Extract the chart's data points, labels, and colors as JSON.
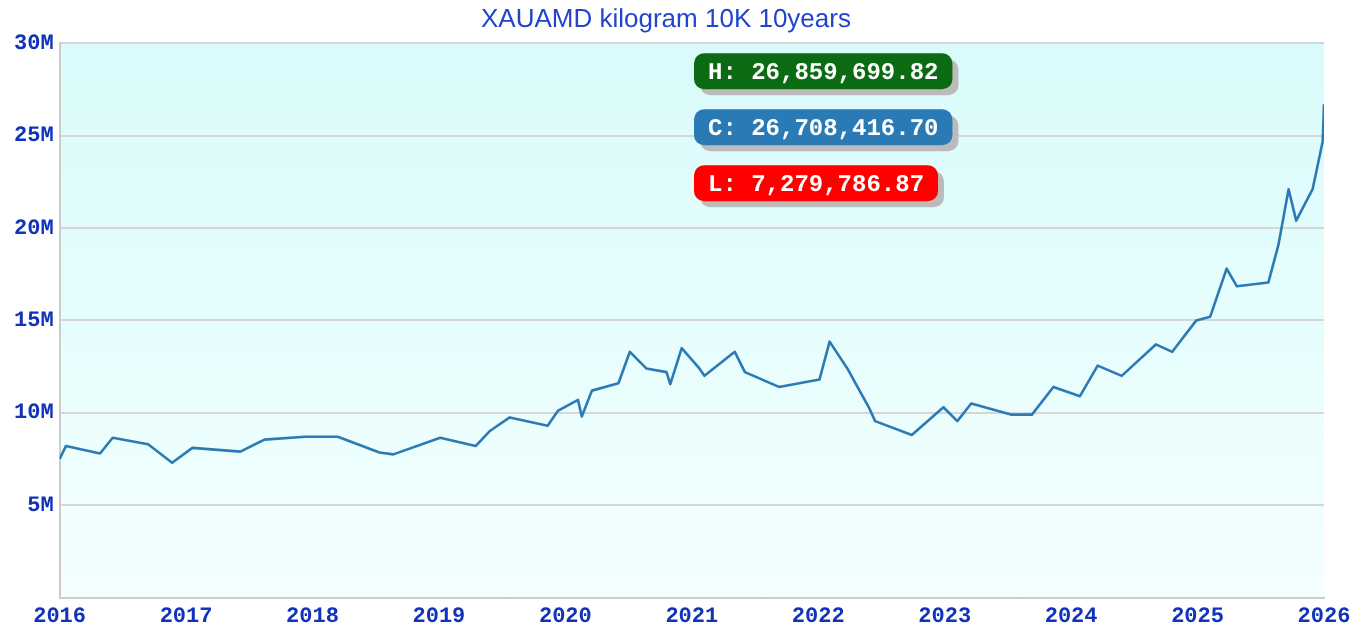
{
  "chart_data": {
    "type": "line",
    "title": "XAUAMD kilogram 10K 10years",
    "x": [
      2016.0,
      2016.05,
      2016.32,
      2016.42,
      2016.7,
      2016.89,
      2017.05,
      2017.43,
      2017.62,
      2017.94,
      2018.2,
      2018.53,
      2018.64,
      2019.01,
      2019.29,
      2019.4,
      2019.56,
      2019.86,
      2019.94,
      2020.1,
      2020.13,
      2020.21,
      2020.42,
      2020.51,
      2020.64,
      2020.8,
      2020.83,
      2020.92,
      2021.06,
      2021.1,
      2021.34,
      2021.42,
      2021.69,
      2022.01,
      2022.09,
      2022.23,
      2022.4,
      2022.45,
      2022.74,
      2022.99,
      2023.1,
      2023.21,
      2023.53,
      2023.69,
      2023.86,
      2024.07,
      2024.21,
      2024.4,
      2024.67,
      2024.8,
      2024.99,
      2025.1,
      2025.23,
      2025.31,
      2025.56,
      2025.64,
      2025.72,
      2025.78,
      2025.91,
      2025.99,
      2026.0
    ],
    "series": [
      {
        "color": "#2a7ab5",
        "values": [
          7.5,
          8.2,
          7.8,
          8.65,
          8.3,
          7.3,
          8.1,
          7.9,
          8.55,
          8.7,
          8.7,
          7.85,
          7.75,
          8.65,
          8.2,
          9.0,
          9.75,
          9.3,
          10.1,
          10.7,
          9.8,
          11.2,
          11.6,
          13.3,
          12.4,
          12.2,
          11.55,
          13.5,
          12.4,
          12.0,
          13.3,
          12.2,
          11.4,
          11.8,
          13.85,
          12.4,
          10.3,
          9.55,
          8.8,
          10.3,
          9.55,
          10.5,
          9.9,
          9.9,
          11.4,
          10.9,
          12.55,
          12.0,
          13.7,
          13.3,
          15.0,
          15.2,
          17.8,
          16.85,
          17.05,
          19.1,
          22.1,
          20.4,
          22.1,
          24.7,
          26.7
        ]
      }
    ],
    "xlim": [
      2016,
      2026
    ],
    "xticks": [
      2016,
      2017,
      2018,
      2019,
      2020,
      2021,
      2022,
      2023,
      2024,
      2025,
      2026
    ],
    "ylim": [
      0,
      30
    ],
    "yticks": [
      {
        "value": 5,
        "label": "5M"
      },
      {
        "value": 10,
        "label": "10M"
      },
      {
        "value": 15,
        "label": "15M"
      },
      {
        "value": 20,
        "label": "20M"
      },
      {
        "value": 25,
        "label": "25M"
      },
      {
        "value": 30,
        "label": "30M"
      }
    ],
    "grid": "y",
    "legend": false,
    "marker": "none",
    "line_style": "solid",
    "annotations": [
      "H: 26,859,699.82",
      "C: 26,708,416.70",
      "L: 7,279,786.87"
    ]
  }
}
